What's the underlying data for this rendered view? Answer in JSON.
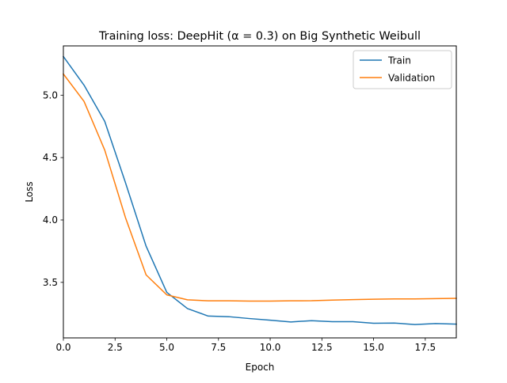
{
  "chart_data": {
    "type": "line",
    "title": "Training loss: DeepHit (α = 0.3) on Big Synthetic Weibull",
    "xlabel": "Epoch",
    "ylabel": "Loss",
    "xlim": [
      0,
      19
    ],
    "ylim": [
      3.055,
      5.395
    ],
    "grid": false,
    "legend_position": "top-right",
    "xticks": [
      0.0,
      2.5,
      5.0,
      7.5,
      10.0,
      12.5,
      15.0,
      17.5
    ],
    "xtick_labels": [
      "0.0",
      "2.5",
      "5.0",
      "7.5",
      "10.0",
      "12.5",
      "15.0",
      "17.5"
    ],
    "yticks": [
      3.5,
      4.0,
      4.5,
      5.0
    ],
    "ytick_labels": [
      "3.5",
      "4.0",
      "4.5",
      "5.0"
    ],
    "x": [
      0,
      1,
      2,
      3,
      4,
      5,
      6,
      7,
      8,
      9,
      10,
      11,
      12,
      13,
      14,
      15,
      16,
      17,
      18,
      19
    ],
    "series": [
      {
        "name": "Train",
        "color": "#1f77b4",
        "values": [
          5.31,
          5.08,
          4.79,
          4.3,
          3.79,
          3.42,
          3.29,
          3.23,
          3.225,
          3.21,
          3.197,
          3.183,
          3.193,
          3.185,
          3.185,
          3.172,
          3.174,
          3.162,
          3.17,
          3.165
        ]
      },
      {
        "name": "Validation",
        "color": "#ff7f0e",
        "values": [
          5.17,
          4.95,
          4.56,
          4.02,
          3.56,
          3.4,
          3.36,
          3.352,
          3.352,
          3.35,
          3.35,
          3.352,
          3.353,
          3.358,
          3.362,
          3.365,
          3.367,
          3.367,
          3.37,
          3.372
        ]
      }
    ]
  }
}
